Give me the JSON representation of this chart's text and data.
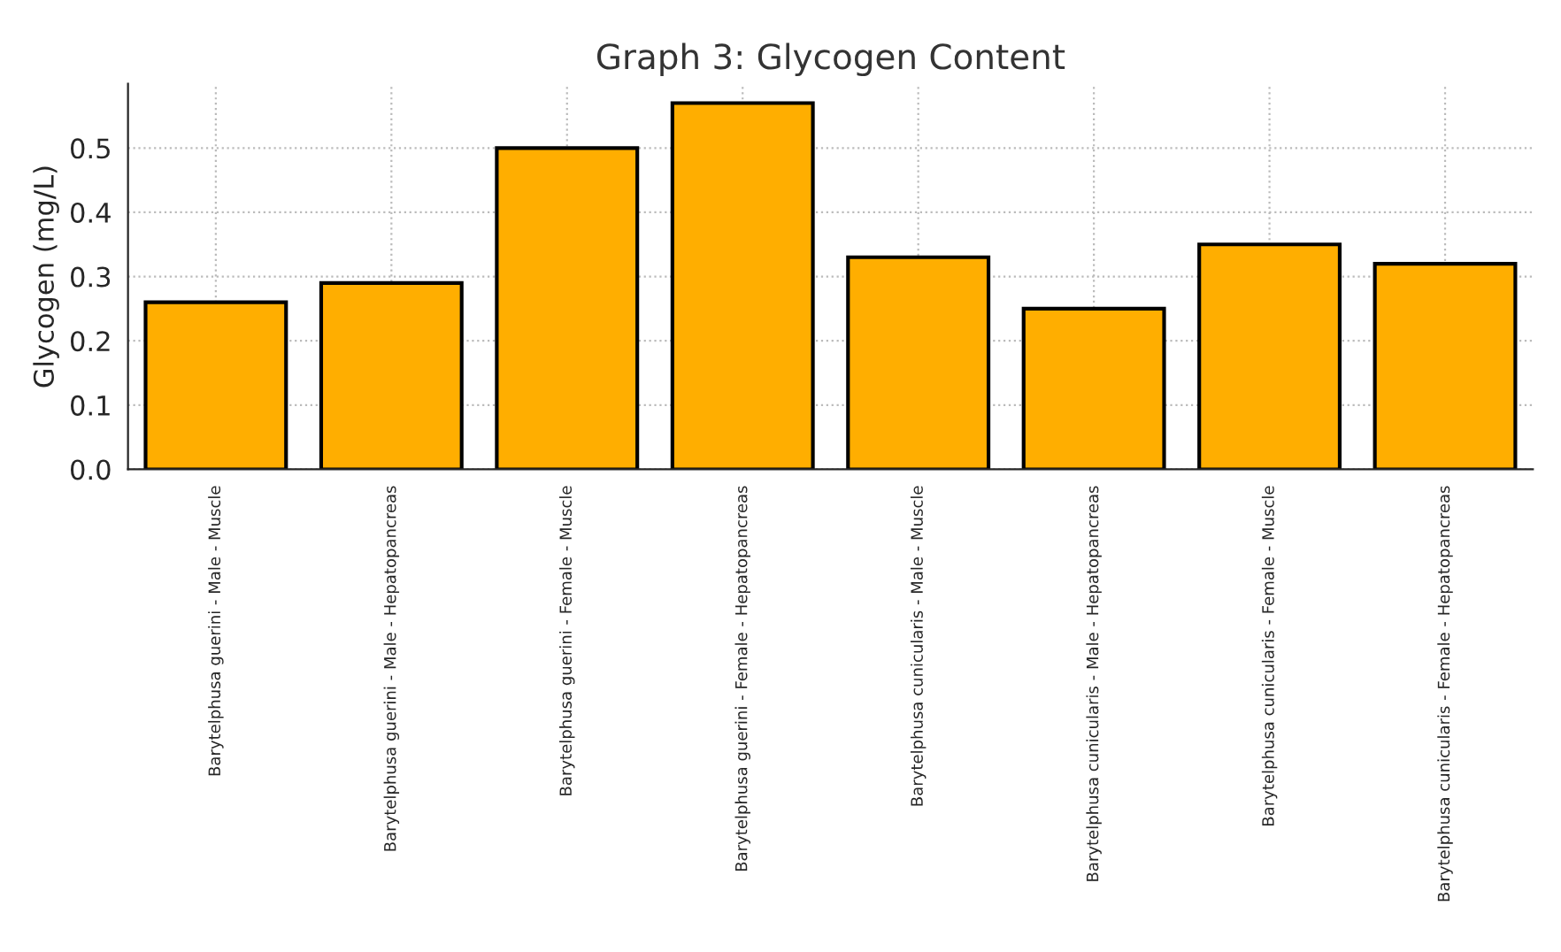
{
  "chart_data": {
    "type": "bar",
    "title": "Graph 3: Glycogen Content",
    "ylabel": "Glycogen (mg/L)",
    "categories": [
      "Barytelphusa guerini - Male - Muscle",
      "Barytelphusa guerini - Male - Hepatopancreas",
      "Barytelphusa guerini - Female - Muscle",
      "Barytelphusa guerini - Female - Hepatopancreas",
      "Barytelphusa cunicularis - Male - Muscle",
      "Barytelphusa cunicularis - Male - Hepatopancreas",
      "Barytelphusa cunicularis - Female - Muscle",
      "Barytelphusa cunicularis - Female - Hepatopancreas"
    ],
    "values": [
      0.26,
      0.29,
      0.5,
      0.57,
      0.33,
      0.25,
      0.35,
      0.32
    ],
    "color": "#ffae00",
    "ylim": [
      0,
      0.6
    ],
    "yticks": [
      {
        "value": 0,
        "label": "0.0"
      },
      0.1,
      0.2,
      0.3,
      0.4,
      0.5
    ],
    "grid": true
  }
}
